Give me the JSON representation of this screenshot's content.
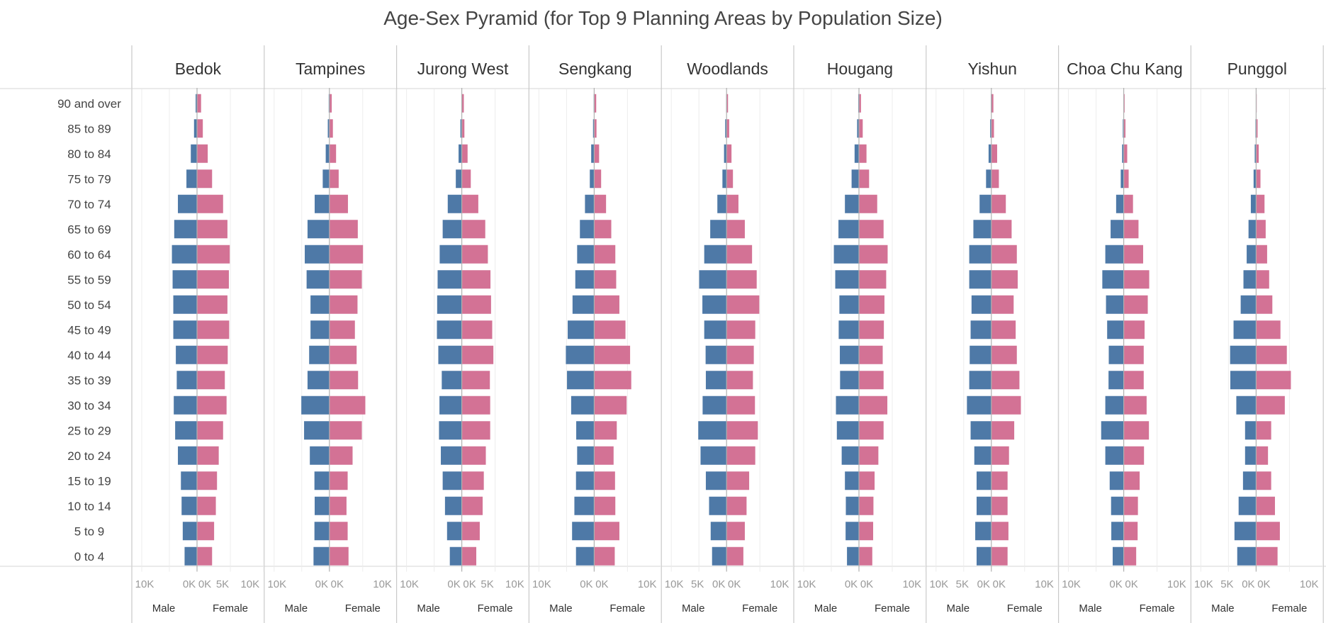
{
  "chart_data": {
    "type": "bar",
    "title": "Age-Sex Pyramid (for Top 9 Planning Areas by Population Size)",
    "orientation": "horizontal-diverging",
    "age_groups": [
      "90 and over",
      "85 to 89",
      "80 to 84",
      "75 to 79",
      "70 to 74",
      "65 to 69",
      "60 to 64",
      "55 to 59",
      "50 to 54",
      "45 to 49",
      "40 to 44",
      "35 to 39",
      "30 to 34",
      "25 to 29",
      "20 to 24",
      "15 to 19",
      "10 to 14",
      "5 to 9",
      "0 to 4"
    ],
    "colors": {
      "Male": "#4e79a7",
      "Female": "#d37295"
    },
    "axis_labels": {
      "Male": "Male",
      "Female": "Female"
    },
    "grid": true,
    "legend": "none",
    "panels": [
      {
        "area": "Bedok",
        "male_ticks": [
          "10K",
          "0K"
        ],
        "female_ticks": [
          "0K",
          "5K",
          "10K"
        ],
        "male_range": [
          0,
          12000
        ],
        "female_range": [
          0,
          11500
        ],
        "male": [
          300,
          650,
          1350,
          2300,
          4150,
          4950,
          5450,
          5300,
          5150,
          5150,
          4600,
          4400,
          5050,
          4750,
          4150,
          3500,
          3350,
          3100,
          2700
        ],
        "female": [
          700,
          1000,
          1850,
          2600,
          4500,
          5250,
          5650,
          5500,
          5250,
          5550,
          5300,
          4800,
          5100,
          4500,
          3750,
          3450,
          3250,
          2950,
          2600
        ]
      },
      {
        "area": "Tampines",
        "male_ticks": [
          "10K",
          "0K"
        ],
        "female_ticks": [
          "0K",
          "10K"
        ],
        "male_range": [
          0,
          12000
        ],
        "female_range": [
          0,
          10500
        ],
        "male": [
          150,
          350,
          800,
          1450,
          3200,
          4750,
          5350,
          4950,
          4100,
          4100,
          4400,
          4750,
          6100,
          5500,
          4250,
          3250,
          3200,
          3250,
          3450
        ],
        "female": [
          400,
          600,
          1150,
          1600,
          3200,
          4900,
          5800,
          5600,
          4850,
          4400,
          4700,
          4950,
          6200,
          5600,
          4000,
          3150,
          2950,
          3150,
          3300
        ]
      },
      {
        "area": "Jurong West",
        "male_ticks": [
          "10K",
          "0K"
        ],
        "female_ticks": [
          "0K",
          "5K",
          "10K"
        ],
        "male_range": [
          0,
          12000
        ],
        "female_range": [
          0,
          11500
        ],
        "male": [
          100,
          300,
          700,
          1300,
          3050,
          4150,
          4800,
          5250,
          5350,
          5400,
          5100,
          4350,
          4850,
          4950,
          4550,
          4150,
          3650,
          3200,
          2600
        ],
        "female": [
          350,
          450,
          1000,
          1550,
          2850,
          4050,
          4500,
          4950,
          5050,
          5250,
          5450,
          4850,
          4900,
          4900,
          4150,
          3800,
          3600,
          3100,
          2500
        ]
      },
      {
        "area": "Sengkang",
        "male_ticks": [
          "10K",
          "0K"
        ],
        "female_ticks": [
          "0K",
          "10K"
        ],
        "male_range": [
          0,
          12000
        ],
        "female_range": [
          0,
          10500
        ],
        "male": [
          100,
          250,
          650,
          950,
          2000,
          3100,
          3700,
          4100,
          4700,
          5750,
          6150,
          5900,
          5000,
          3900,
          3700,
          3950,
          4300,
          4800,
          3950
        ],
        "female": [
          350,
          400,
          850,
          1200,
          2050,
          2950,
          3650,
          3800,
          4350,
          5400,
          6200,
          6400,
          5600,
          3900,
          3350,
          3600,
          3650,
          4350,
          3550
        ]
      },
      {
        "area": "Woodlands",
        "male_ticks": [
          "10K",
          "5K",
          "0K"
        ],
        "female_ticks": [
          "0K",
          "10K"
        ],
        "male_range": [
          0,
          12000
        ],
        "female_range": [
          0,
          10500
        ],
        "male": [
          100,
          300,
          550,
          900,
          2000,
          3550,
          4850,
          5950,
          5250,
          4850,
          4550,
          4500,
          5200,
          6150,
          5650,
          4500,
          3800,
          3450,
          3150
        ],
        "female": [
          250,
          450,
          850,
          1100,
          2050,
          3150,
          4400,
          5200,
          5650,
          4950,
          4700,
          4550,
          4900,
          5400,
          4950,
          3900,
          3450,
          3150,
          2900
        ]
      },
      {
        "area": "Hougang",
        "male_ticks": [
          "10K",
          "0K"
        ],
        "female_ticks": [
          "0K",
          "10K"
        ],
        "male_range": [
          0,
          12000
        ],
        "female_range": [
          0,
          10500
        ],
        "male": [
          150,
          400,
          950,
          1600,
          3050,
          4450,
          5450,
          5150,
          4250,
          4400,
          4150,
          4100,
          5000,
          4800,
          3750,
          3050,
          2850,
          2900,
          2600
        ],
        "female": [
          350,
          650,
          1300,
          1750,
          3150,
          4250,
          4950,
          4700,
          4400,
          4300,
          4100,
          4250,
          4900,
          4250,
          3350,
          2700,
          2500,
          2450,
          2300
        ]
      },
      {
        "area": "Yishun",
        "male_ticks": [
          "10K",
          "5K",
          "0K"
        ],
        "female_ticks": [
          "0K",
          "10K"
        ],
        "male_range": [
          0,
          12000
        ],
        "female_range": [
          0,
          10500
        ],
        "male": [
          100,
          250,
          600,
          1150,
          2550,
          3900,
          4800,
          4800,
          4300,
          4500,
          4700,
          4800,
          5300,
          4500,
          3700,
          3200,
          3200,
          3500,
          3200
        ],
        "female": [
          350,
          450,
          1000,
          1300,
          2500,
          3500,
          4400,
          4550,
          3850,
          4200,
          4400,
          4850,
          5100,
          3950,
          3050,
          2800,
          2800,
          2950,
          2800
        ]
      },
      {
        "area": "Choa Chu Kang",
        "male_ticks": [
          "10K",
          "0K"
        ],
        "female_ticks": [
          "0K",
          "10K"
        ],
        "male_range": [
          0,
          12000
        ],
        "female_range": [
          0,
          10500
        ],
        "male": [
          50,
          200,
          350,
          650,
          1650,
          2850,
          4000,
          4650,
          3850,
          3600,
          3250,
          3300,
          4000,
          4900,
          4000,
          3050,
          2750,
          2700,
          2400
        ],
        "female": [
          150,
          300,
          600,
          850,
          1600,
          2550,
          3350,
          4400,
          4150,
          3600,
          3450,
          3450,
          3950,
          4350,
          3500,
          2750,
          2450,
          2400,
          2150
        ]
      },
      {
        "area": "Punggol",
        "male_ticks": [
          "10K",
          "5K",
          "0K"
        ],
        "female_ticks": [
          "0K",
          "10K"
        ],
        "male_range": [
          0,
          12000
        ],
        "female_range": [
          0,
          10500
        ],
        "male": [
          50,
          150,
          300,
          550,
          1150,
          1650,
          2050,
          2750,
          3350,
          4900,
          5650,
          5600,
          4300,
          2400,
          2400,
          2850,
          3800,
          4700,
          4100
        ],
        "female": [
          100,
          250,
          450,
          750,
          1450,
          1650,
          1900,
          2250,
          2800,
          4200,
          5300,
          6000,
          4950,
          2600,
          2050,
          2600,
          3250,
          4100,
          3700
        ]
      }
    ]
  }
}
